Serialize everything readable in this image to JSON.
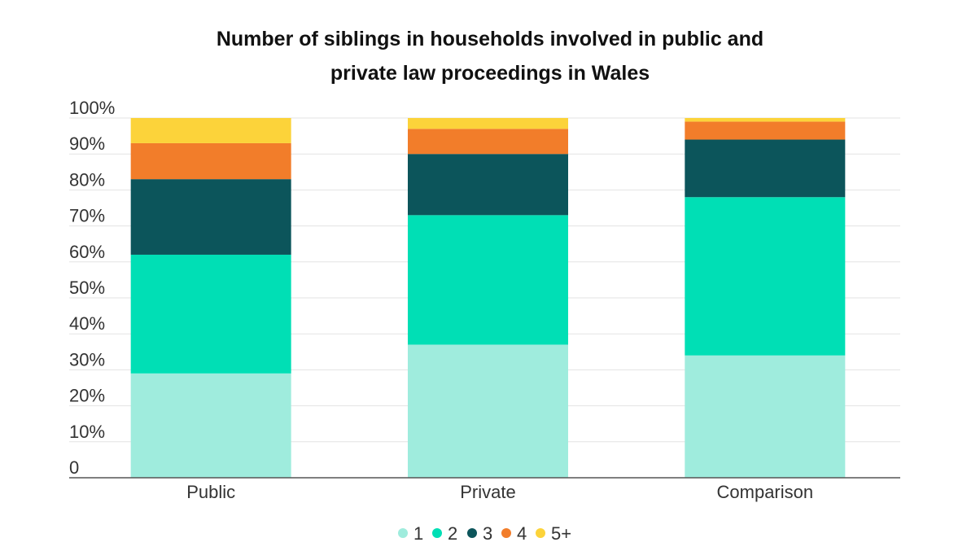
{
  "chart_data": {
    "type": "bar",
    "stacked": true,
    "title_lines": [
      "Number of siblings in households involved in public and",
      "private law proceedings in Wales"
    ],
    "categories": [
      "Public",
      "Private",
      "Comparison"
    ],
    "y_ticks": [
      "0",
      "10%",
      "20%",
      "30%",
      "40%",
      "50%",
      "60%",
      "70%",
      "80%",
      "90%",
      "100%"
    ],
    "ylim": [
      0,
      100
    ],
    "grid": true,
    "legend_position": "bottom",
    "series": [
      {
        "name": "1",
        "color": "#9FECDD",
        "values": [
          29,
          37,
          34
        ]
      },
      {
        "name": "2",
        "color": "#00DFB5",
        "values": [
          33,
          36,
          44
        ]
      },
      {
        "name": "3",
        "color": "#0C555B",
        "values": [
          21,
          17,
          16
        ]
      },
      {
        "name": "4",
        "color": "#F27D2A",
        "values": [
          10,
          7,
          5
        ]
      },
      {
        "name": "5+",
        "color": "#FCD33A",
        "values": [
          7,
          3,
          1
        ]
      }
    ]
  }
}
